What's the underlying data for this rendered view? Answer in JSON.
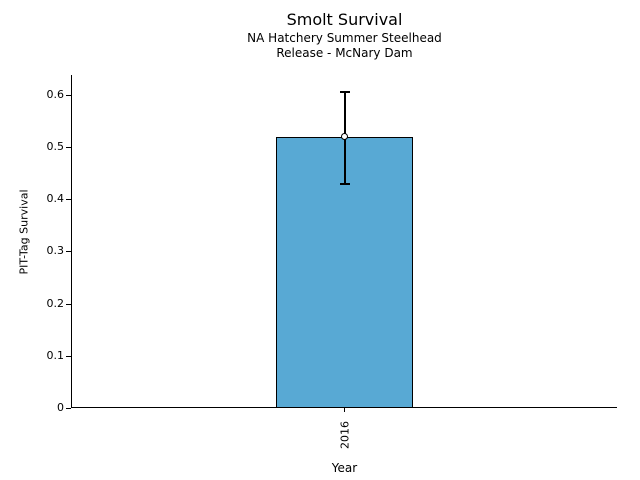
{
  "chart_data": {
    "type": "bar",
    "title": "Smolt Survival",
    "subtitle_lines": [
      "NA Hatchery Summer Steelhead",
      "Release - McNary Dam"
    ],
    "xlabel": "Year",
    "ylabel": "PIT-Tag Survival",
    "categories": [
      "2016"
    ],
    "values": [
      0.52
    ],
    "error_bars": {
      "low": [
        0.43
      ],
      "high": [
        0.605
      ]
    },
    "marker": "open-circle",
    "yticks": [
      0,
      0.1,
      0.2,
      0.3,
      0.4,
      0.5,
      0.6
    ],
    "ytick_labels": [
      "0",
      "0.1",
      "0.2",
      "0.3",
      "0.4",
      "0.5",
      "0.6"
    ],
    "ylim": [
      0,
      0.64
    ],
    "grid": false,
    "legend": "none",
    "colors": {
      "bar_fill": "#58A9D4",
      "bar_edge": "#000000",
      "error": "#000000",
      "marker_fill": "#ffffff",
      "axis": "#000000",
      "text": "#000000",
      "background": "#ffffff"
    }
  }
}
